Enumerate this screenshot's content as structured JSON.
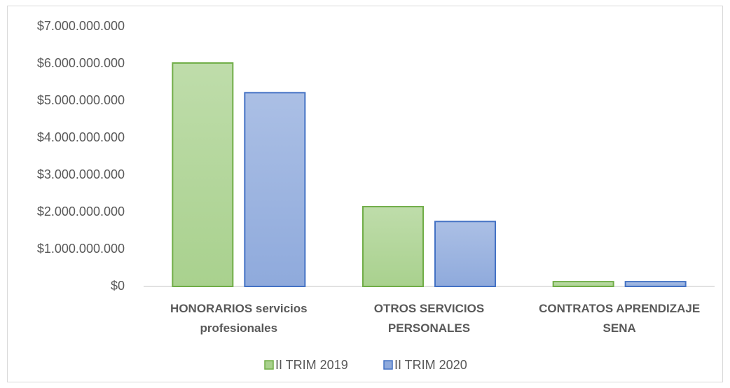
{
  "chart_data": {
    "type": "bar",
    "categories": [
      "HONORARIOS servicios profesionales",
      "OTROS SERVICIOS PERSONALES",
      "CONTRATOS APRENDIZAJE SENA"
    ],
    "series": [
      {
        "name": "II TRIM 2019",
        "color": "#a9d18e",
        "values": [
          6020000000,
          2150000000,
          130000000
        ]
      },
      {
        "name": "II TRIM 2020",
        "color": "#8faadc",
        "values": [
          5220000000,
          1750000000,
          130000000
        ]
      }
    ],
    "ylim": [
      0,
      7000000000
    ],
    "yticks": [
      {
        "value": 0,
        "label": "$0"
      },
      {
        "value": 1000000000,
        "label": "$1.000.000.000"
      },
      {
        "value": 2000000000,
        "label": "$2.000.000.000"
      },
      {
        "value": 3000000000,
        "label": "$3.000.000.000"
      },
      {
        "value": 4000000000,
        "label": "$4.000.000.000"
      },
      {
        "value": 5000000000,
        "label": "$5.000.000.000"
      },
      {
        "value": 6000000000,
        "label": "$6.000.000.000"
      },
      {
        "value": 7000000000,
        "label": "$7.000.000.000"
      }
    ],
    "grid": false,
    "legend": "bottom"
  }
}
